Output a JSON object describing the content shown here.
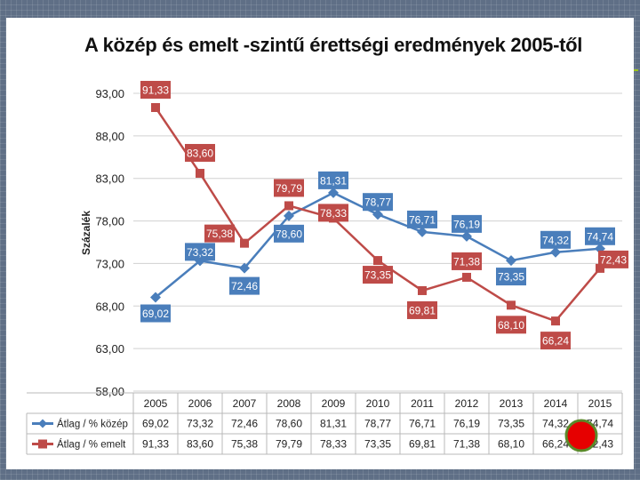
{
  "slide": {
    "title": "A közép és emelt -szintű érettségi eredmények 2005-től"
  },
  "chart_data": {
    "type": "line",
    "title": "A közép és emelt -szintű érettségi eredmények 2005-től",
    "ylabel": "Százalék",
    "xlabel": "",
    "ylim": [
      58,
      93
    ],
    "yticks": [
      "93,00",
      "88,00",
      "83,00",
      "78,00",
      "73,00",
      "68,00",
      "63,00",
      "58,00"
    ],
    "categories": [
      "2005",
      "2006",
      "2007",
      "2008",
      "2009",
      "2010",
      "2011",
      "2012",
      "2013",
      "2014",
      "2015"
    ],
    "series": [
      {
        "name": "Átlag / % közép",
        "color": "#4a7ebb",
        "values": [
          69.02,
          73.32,
          72.46,
          78.6,
          81.31,
          78.77,
          76.71,
          76.19,
          73.35,
          74.32,
          74.74
        ],
        "labels": [
          "69,02",
          "73,32",
          "72,46",
          "78,60",
          "81,31",
          "78,77",
          "76,71",
          "76,19",
          "73,35",
          "74,32",
          "74,74"
        ]
      },
      {
        "name": "Átlag / % emelt",
        "color": "#be4b48",
        "values": [
          91.33,
          83.6,
          75.38,
          79.79,
          78.33,
          73.35,
          69.81,
          71.38,
          68.1,
          66.24,
          72.43
        ],
        "labels": [
          "91,33",
          "83,60",
          "75,38",
          "79,79",
          "78,33",
          "73,35",
          "69,81",
          "71,38",
          "68,10",
          "66,24",
          "72,43"
        ]
      }
    ],
    "grid": true,
    "legend": "table-below"
  }
}
